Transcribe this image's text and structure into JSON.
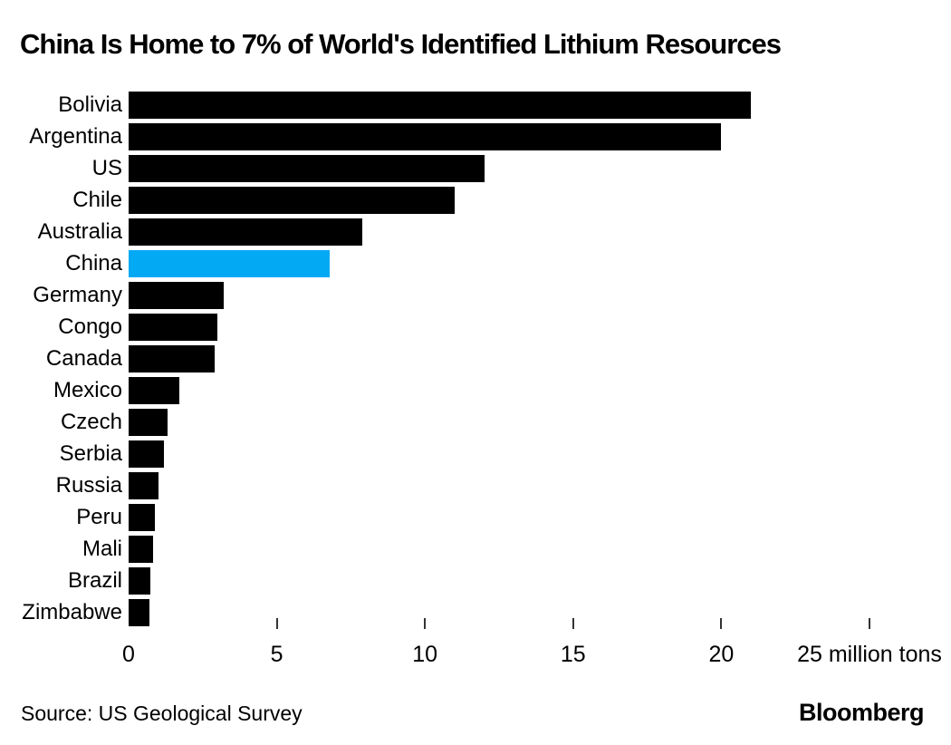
{
  "chart_data": {
    "type": "bar",
    "orientation": "horizontal",
    "title": "China Is Home to 7% of World's Identified Lithium Resources",
    "categories": [
      "Bolivia",
      "Argentina",
      "US",
      "Chile",
      "Australia",
      "China",
      "Germany",
      "Congo",
      "Canada",
      "Mexico",
      "Czech",
      "Serbia",
      "Russia",
      "Peru",
      "Mali",
      "Brazil",
      "Zimbabwe"
    ],
    "values": [
      21,
      20,
      12,
      11,
      7.9,
      6.8,
      3.2,
      3.0,
      2.9,
      1.7,
      1.3,
      1.2,
      1.0,
      0.88,
      0.84,
      0.73,
      0.69
    ],
    "unit": "million tons",
    "xlabel": "",
    "ylabel": "",
    "xlim": [
      0,
      25
    ],
    "x_ticks": [
      0,
      5,
      10,
      15,
      20,
      25
    ],
    "x_tick_labels": [
      "0",
      "5",
      "10",
      "15",
      "20",
      "25 million tons"
    ],
    "highlight_category": "China",
    "colors": {
      "bar": "#000000",
      "highlight": "#04a9f4",
      "tick": "#333333",
      "background": "#ffffff"
    },
    "grid": false,
    "legend": null
  },
  "footer": {
    "source": "Source: US Geological Survey",
    "brand": "Bloomberg"
  }
}
